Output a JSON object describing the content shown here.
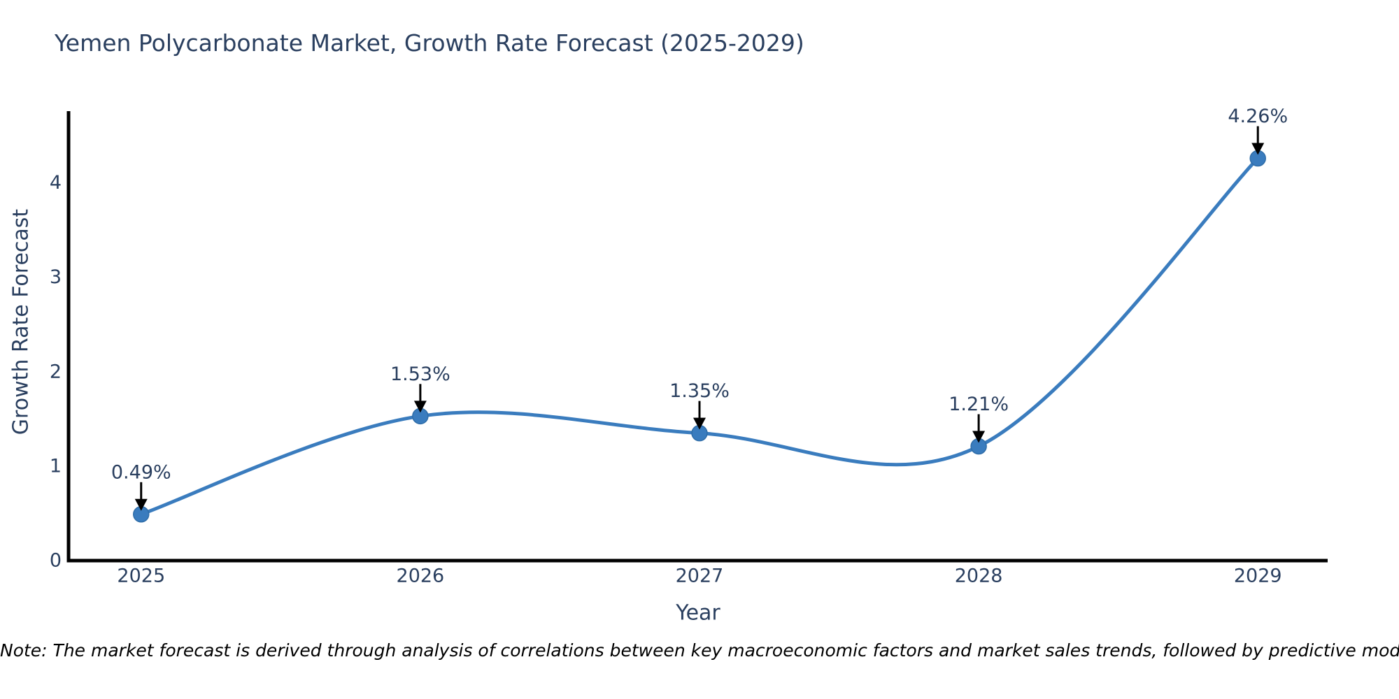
{
  "title": "Yemen Polycarbonate Market, Growth Rate Forecast (2025-2029)",
  "note": "Note: The market forecast is derived through analysis of correlations between key macroeconomic factors and market sales trends, followed by predictive modeling to project future sales.",
  "chart_data": {
    "type": "line",
    "title": "Yemen Polycarbonate Market, Growth Rate Forecast (2025-2029)",
    "x": [
      2025,
      2026,
      2027,
      2028,
      2029
    ],
    "y": [
      0.49,
      1.53,
      1.35,
      1.21,
      4.26
    ],
    "point_labels": [
      "0.49%",
      "1.53%",
      "1.35%",
      "1.21%",
      "4.26%"
    ],
    "xlabel": "Year",
    "ylabel": "Growth Rate Forecast",
    "xtick_labels": [
      "2025",
      "2026",
      "2027",
      "2028",
      "2029"
    ],
    "ytick_values": [
      0,
      1,
      2,
      3,
      4
    ],
    "xlim": [
      2024.74,
      2029.25
    ],
    "ylim": [
      0,
      4.76
    ],
    "line_shape": "spline",
    "grid": false,
    "legend": "none",
    "colors": {
      "line": "#3a7cbe",
      "marker": "#3a7cbe",
      "marker_edge": "#2f6da8",
      "arrow": "#000000",
      "text": "#2a3f5f",
      "axis": "#000000"
    }
  }
}
